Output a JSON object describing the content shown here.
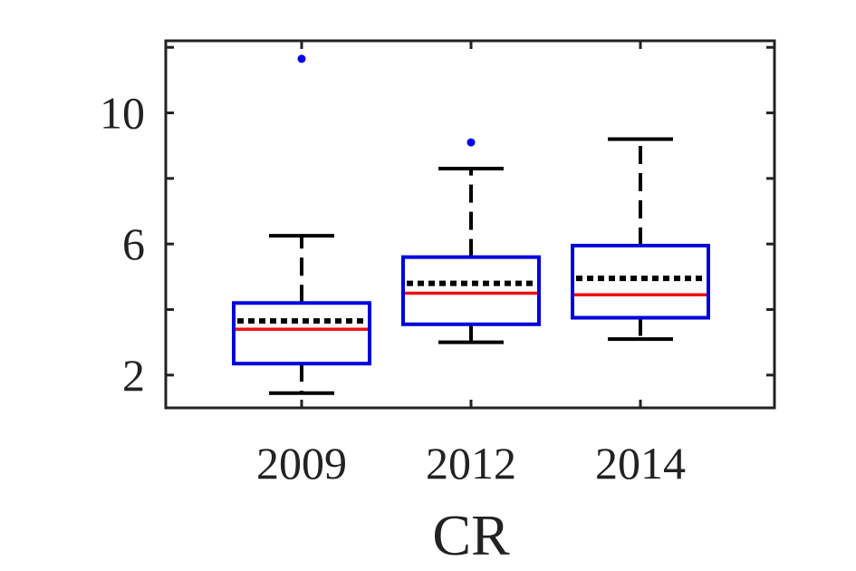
{
  "chart_data": {
    "type": "boxplot",
    "title": "",
    "xlabel": "CR",
    "ylabel": "",
    "categories": [
      "2009",
      "2012",
      "2014"
    ],
    "ylim": [
      1,
      12.2
    ],
    "yticks": [
      2,
      6,
      10
    ],
    "grid": false,
    "boxes": [
      {
        "category": "2009",
        "whisker_low": 1.45,
        "q1": 2.35,
        "median": 3.4,
        "mean": 3.65,
        "q3": 4.2,
        "whisker_high": 6.25,
        "outliers": [
          11.65
        ]
      },
      {
        "category": "2012",
        "whisker_low": 3.0,
        "q1": 3.55,
        "median": 4.5,
        "mean": 4.8,
        "q3": 5.6,
        "whisker_high": 8.3,
        "outliers": [
          9.1
        ]
      },
      {
        "category": "2014",
        "whisker_low": 3.1,
        "q1": 3.75,
        "median": 4.45,
        "mean": 4.95,
        "q3": 5.95,
        "whisker_high": 9.2,
        "outliers": []
      }
    ],
    "colors": {
      "box": "#0000dd",
      "median": "#ee1111",
      "mean": "#000000",
      "whisker": "#000000",
      "outlier": "#0000ee",
      "axis": "#222222"
    }
  }
}
